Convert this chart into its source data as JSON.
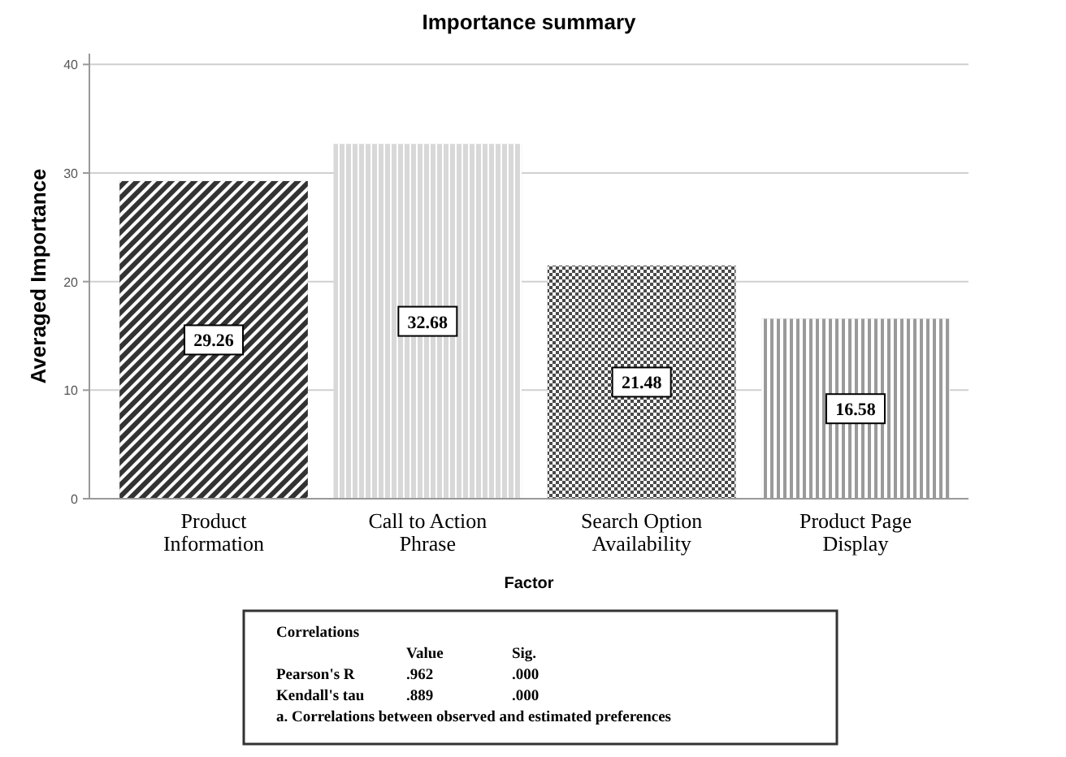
{
  "chart_data": {
    "type": "bar",
    "title": "Importance summary",
    "xlabel": "Factor",
    "ylabel": "Averaged Importance",
    "categories": [
      "Product Information",
      "Call to Action Phrase",
      "Search Option Availability",
      "Product Page Display"
    ],
    "values": [
      29.26,
      32.68,
      21.48,
      16.58
    ],
    "colors": [
      "#333333",
      "#d8d8d8",
      "#4a4a4a",
      "#9a9a9a"
    ],
    "ylim": [
      0,
      41
    ],
    "yticks": [
      0,
      10,
      20,
      30,
      40
    ],
    "grid": "y",
    "data_labels": true,
    "annotations": [
      "Correlations",
      "Value",
      "Sig.",
      "Pearson's R",
      ".962",
      ".000",
      "Kendall's tau",
      ".889",
      ".000",
      "a. Correlations between observed and estimated preferences"
    ]
  }
}
